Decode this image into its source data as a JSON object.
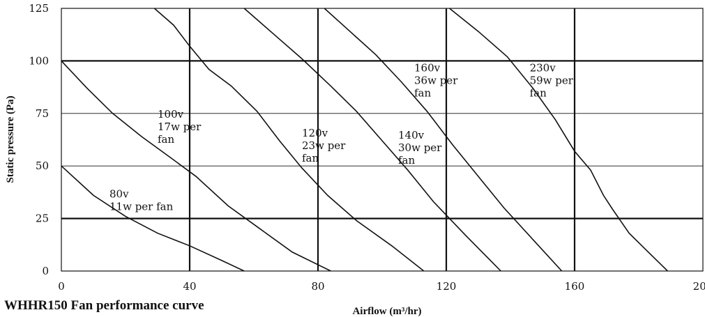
{
  "chart_data": {
    "type": "line",
    "title": "",
    "caption": "WHHR150 Fan performance curve",
    "xlabel": "Airflow (m³/hr)",
    "ylabel": "Static pressure (Pa)",
    "xlim": [
      0,
      200
    ],
    "ylim": [
      0,
      125
    ],
    "x_ticks": [
      "0",
      "40",
      "80",
      "120",
      "160",
      "200"
    ],
    "y_ticks": [
      "0",
      "25",
      "50",
      "75",
      "100",
      "125"
    ],
    "grid": true,
    "series": [
      {
        "name": "80v 11w per fan",
        "label_lines": [
          "80v",
          "11w per fan"
        ],
        "label_at": [
          15,
          35
        ],
        "points": [
          [
            0,
            50
          ],
          [
            10,
            36
          ],
          [
            20,
            26
          ],
          [
            30,
            18
          ],
          [
            40,
            12
          ],
          [
            50,
            5
          ],
          [
            57,
            0
          ]
        ]
      },
      {
        "name": "100v 17w per fan",
        "label_lines": [
          "100v",
          "17w per",
          "fan"
        ],
        "label_at": [
          30,
          73
        ],
        "points": [
          [
            0,
            100
          ],
          [
            8,
            87
          ],
          [
            16,
            75
          ],
          [
            25,
            64
          ],
          [
            34,
            54
          ],
          [
            42,
            45
          ],
          [
            52,
            31
          ],
          [
            62,
            20
          ],
          [
            72,
            9
          ],
          [
            84,
            0
          ]
        ]
      },
      {
        "name": "120v 23w per fan",
        "label_lines": [
          "120v",
          "23w per",
          "fan"
        ],
        "label_at": [
          75,
          64
        ],
        "points": [
          [
            29,
            125
          ],
          [
            35,
            117
          ],
          [
            40,
            107
          ],
          [
            46,
            96
          ],
          [
            53,
            88
          ],
          [
            61,
            76
          ],
          [
            68,
            62
          ],
          [
            75,
            49
          ],
          [
            83,
            36
          ],
          [
            92,
            24
          ],
          [
            103,
            12
          ],
          [
            113,
            0
          ]
        ]
      },
      {
        "name": "140v 30w per fan",
        "label_lines": [
          "140v",
          "30w per",
          "fan"
        ],
        "label_at": [
          105,
          63
        ],
        "points": [
          [
            57,
            125
          ],
          [
            66,
            113
          ],
          [
            75,
            101
          ],
          [
            84,
            88
          ],
          [
            92,
            76
          ],
          [
            100,
            62
          ],
          [
            108,
            48
          ],
          [
            116,
            33
          ],
          [
            126,
            17
          ],
          [
            137,
            0
          ]
        ]
      },
      {
        "name": "160v 36w per fan",
        "label_lines": [
          "160v",
          "36w per",
          "fan"
        ],
        "label_at": [
          110,
          95
        ],
        "points": [
          [
            82,
            125
          ],
          [
            90,
            114
          ],
          [
            98,
            103
          ],
          [
            106,
            90
          ],
          [
            114,
            76
          ],
          [
            122,
            60
          ],
          [
            130,
            45
          ],
          [
            138,
            30
          ],
          [
            147,
            15
          ],
          [
            156,
            0
          ]
        ]
      },
      {
        "name": "230v 59w per fan",
        "label_lines": [
          "230v",
          "59w per",
          "fan"
        ],
        "label_at": [
          146,
          95
        ],
        "points": [
          [
            121,
            125
          ],
          [
            130,
            114
          ],
          [
            139,
            102
          ],
          [
            147,
            87
          ],
          [
            154,
            72
          ],
          [
            160,
            57
          ],
          [
            165,
            48
          ],
          [
            169,
            36
          ],
          [
            172,
            29
          ],
          [
            177,
            18
          ],
          [
            183,
            9
          ],
          [
            189,
            0
          ]
        ]
      }
    ]
  }
}
